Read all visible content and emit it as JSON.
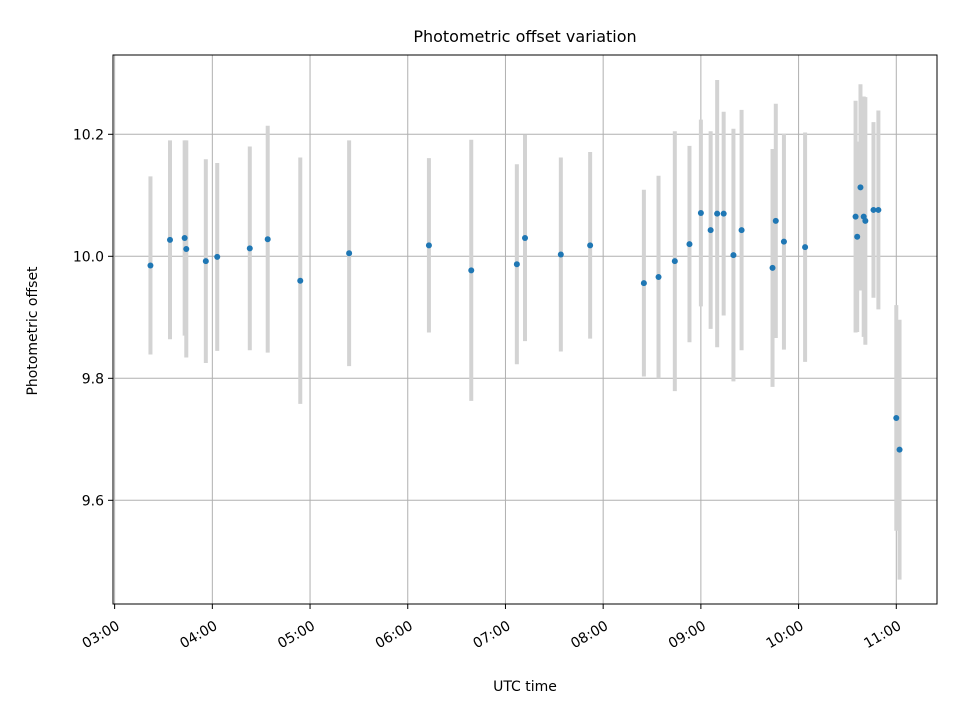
{
  "chart_data": {
    "type": "scatter",
    "title": "Photometric offset variation",
    "xlabel": "UTC time",
    "ylabel": "Photometric offset",
    "xlim": [
      "02:59",
      "11:25"
    ],
    "ylim": [
      9.43,
      10.33
    ],
    "xticks": [
      "03:00",
      "04:00",
      "05:00",
      "06:00",
      "07:00",
      "08:00",
      "09:00",
      "10:00",
      "11:00"
    ],
    "yticks": [
      9.6,
      9.8,
      10.0,
      10.2
    ],
    "grid": true,
    "legend": "none",
    "colors": {
      "marker": "#1f77b4",
      "errorbar": "#d3d3d3",
      "grid": "#b0b0b0"
    },
    "points": [
      {
        "x": "03:22",
        "y": 9.985,
        "yerr": 0.146
      },
      {
        "x": "03:34",
        "y": 10.027,
        "yerr": 0.163
      },
      {
        "x": "03:43",
        "y": 10.03,
        "yerr": 0.16
      },
      {
        "x": "03:44",
        "y": 10.012,
        "yerr": 0.178
      },
      {
        "x": "03:56",
        "y": 9.992,
        "yerr": 0.167
      },
      {
        "x": "04:03",
        "y": 9.999,
        "yerr": 0.154
      },
      {
        "x": "04:23",
        "y": 10.013,
        "yerr": 0.167
      },
      {
        "x": "04:34",
        "y": 10.028,
        "yerr": 0.186
      },
      {
        "x": "04:54",
        "y": 9.96,
        "yerr": 0.202
      },
      {
        "x": "05:24",
        "y": 10.005,
        "yerr": 0.185
      },
      {
        "x": "06:13",
        "y": 10.018,
        "yerr": 0.143
      },
      {
        "x": "06:39",
        "y": 9.977,
        "yerr": 0.214
      },
      {
        "x": "07:07",
        "y": 9.987,
        "yerr": 0.164
      },
      {
        "x": "07:12",
        "y": 10.03,
        "yerr": 0.169
      },
      {
        "x": "07:34",
        "y": 10.003,
        "yerr": 0.159
      },
      {
        "x": "07:52",
        "y": 10.018,
        "yerr": 0.153
      },
      {
        "x": "08:25",
        "y": 9.956,
        "yerr": 0.153
      },
      {
        "x": "08:34",
        "y": 9.966,
        "yerr": 0.166
      },
      {
        "x": "08:44",
        "y": 9.992,
        "yerr": 0.213
      },
      {
        "x": "08:53",
        "y": 10.02,
        "yerr": 0.161
      },
      {
        "x": "09:00",
        "y": 10.071,
        "yerr": 0.153
      },
      {
        "x": "09:06",
        "y": 10.043,
        "yerr": 0.162
      },
      {
        "x": "09:10",
        "y": 10.07,
        "yerr": 0.219
      },
      {
        "x": "09:14",
        "y": 10.07,
        "yerr": 0.167
      },
      {
        "x": "09:20",
        "y": 10.002,
        "yerr": 0.207
      },
      {
        "x": "09:25",
        "y": 10.043,
        "yerr": 0.197
      },
      {
        "x": "09:44",
        "y": 9.981,
        "yerr": 0.195
      },
      {
        "x": "09:46",
        "y": 10.058,
        "yerr": 0.192
      },
      {
        "x": "09:51",
        "y": 10.024,
        "yerr": 0.177
      },
      {
        "x": "10:04",
        "y": 10.015,
        "yerr": 0.188
      },
      {
        "x": "10:35",
        "y": 10.065,
        "yerr": 0.19
      },
      {
        "x": "10:36",
        "y": 10.032,
        "yerr": 0.156
      },
      {
        "x": "10:38",
        "y": 10.113,
        "yerr": 0.169
      },
      {
        "x": "10:40",
        "y": 10.065,
        "yerr": 0.197
      },
      {
        "x": "10:41",
        "y": 10.058,
        "yerr": 0.203
      },
      {
        "x": "10:46",
        "y": 10.076,
        "yerr": 0.144
      },
      {
        "x": "10:49",
        "y": 10.076,
        "yerr": 0.163
      },
      {
        "x": "11:00",
        "y": 9.735,
        "yerr": 0.185
      },
      {
        "x": "11:02",
        "y": 9.683,
        "yerr": 0.213
      }
    ]
  }
}
